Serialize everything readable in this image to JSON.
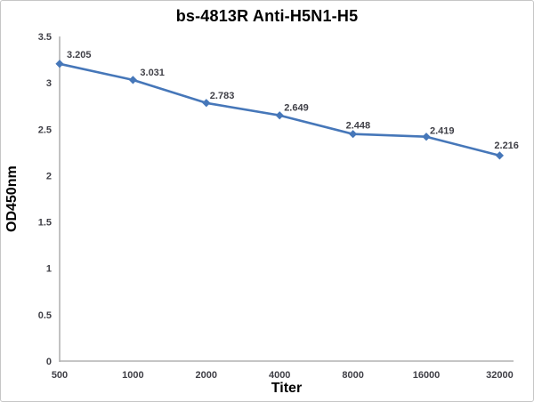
{
  "chart_data": {
    "type": "line",
    "title": "bs-4813R Anti-H5N1-H5",
    "xlabel": "Titer",
    "ylabel": "OD450nm",
    "categories": [
      "500",
      "1000",
      "2000",
      "4000",
      "8000",
      "16000",
      "32000"
    ],
    "series": [
      {
        "name": "OD450nm",
        "values": [
          3.205,
          3.031,
          2.783,
          2.649,
          2.448,
          2.419,
          2.216
        ]
      }
    ],
    "data_labels": [
      "3.205",
      "3.031",
      "2.783",
      "2.649",
      "2.448",
      "2.419",
      "2.216"
    ],
    "ylim": [
      0,
      3.5
    ],
    "ytick_step": 0.5,
    "yticks": [
      "0",
      "0.5",
      "1",
      "1.5",
      "2",
      "2.5",
      "3",
      "3.5"
    ],
    "grid": false,
    "legend": "none",
    "marker": "diamond",
    "colors": {
      "line": "#4677b9",
      "marker": "#4677b9",
      "axis": "#b2b2b2",
      "tick_label": "#3f3f46",
      "title": "#000000",
      "background": "#ffffff",
      "border": "#c6c6c6"
    }
  }
}
